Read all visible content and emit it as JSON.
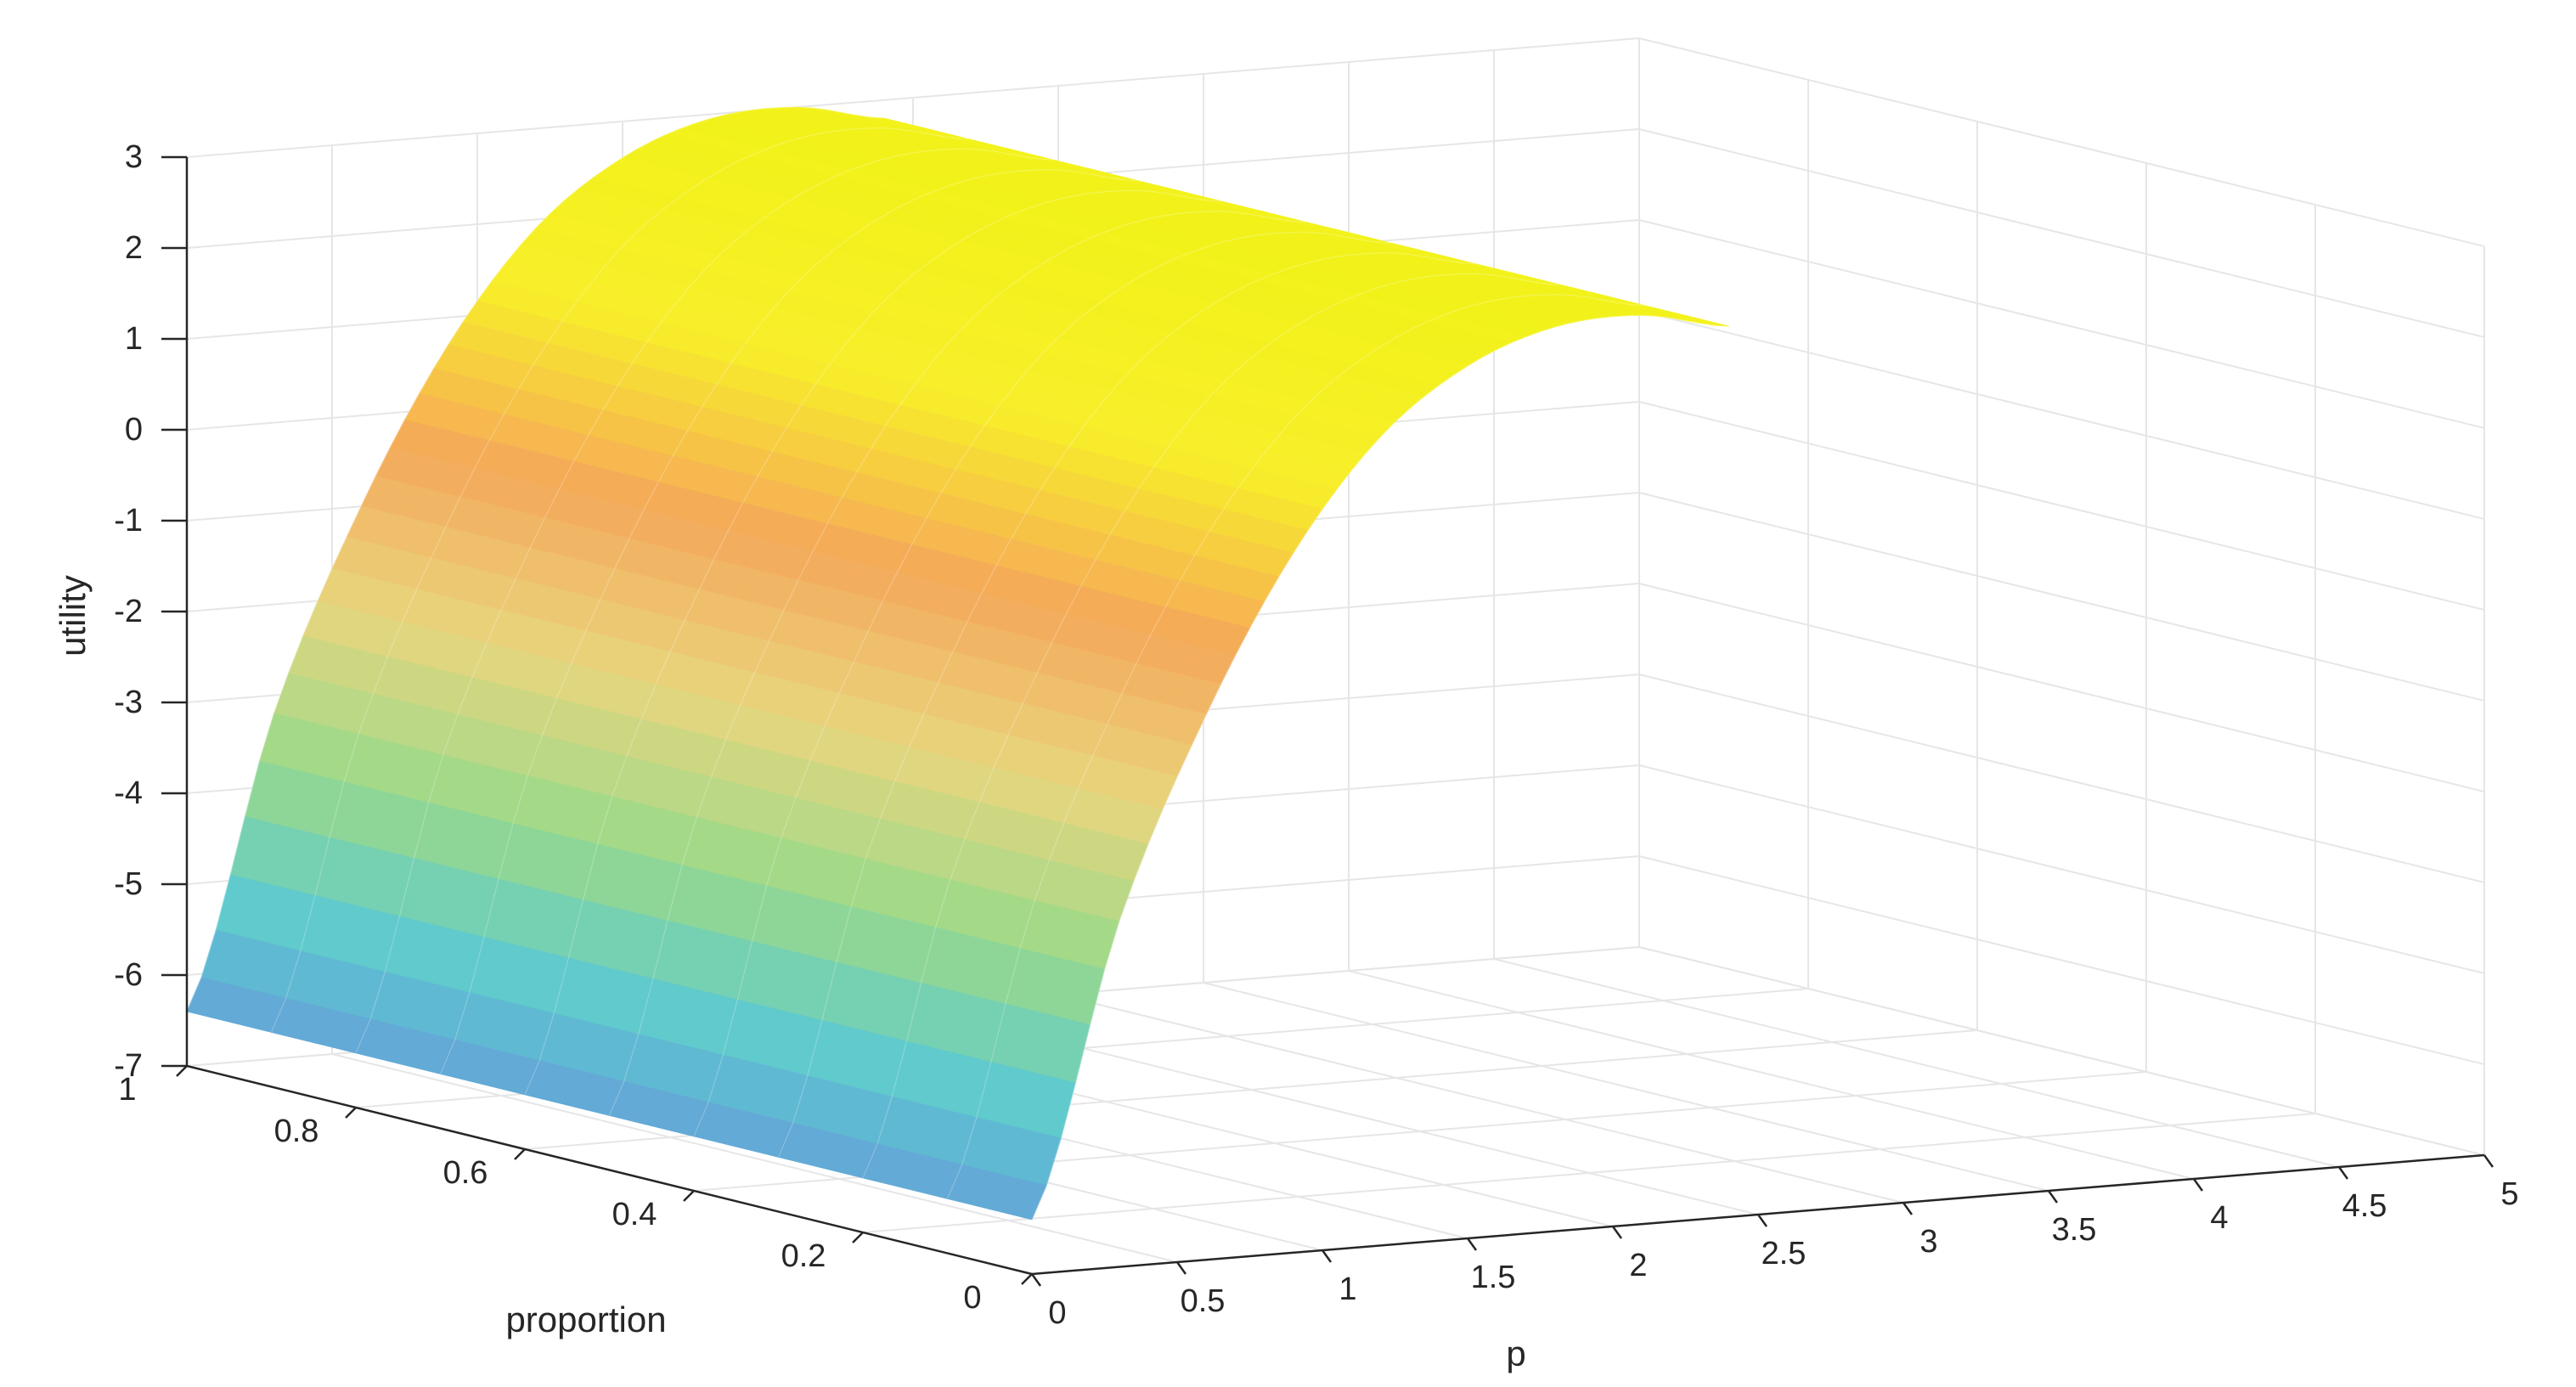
{
  "chart_data": {
    "type": "surface",
    "title": "",
    "xlabel": "p",
    "ylabel": "proportion",
    "zlabel": "utility",
    "xlim": [
      0,
      5
    ],
    "ylim": [
      0,
      1
    ],
    "zlim": [
      -7,
      3
    ],
    "x_ticks": [
      "0",
      "0.5",
      "1",
      "1.5",
      "2",
      "2.5",
      "3",
      "3.5",
      "4",
      "4.5",
      "5"
    ],
    "y_ticks": [
      "0",
      "0.2",
      "0.4",
      "0.6",
      "0.8",
      "1"
    ],
    "z_ticks": [
      "-7",
      "-6",
      "-5",
      "-4",
      "-3",
      "-2",
      "-1",
      "0",
      "1",
      "2",
      "3"
    ],
    "x_range": [
      0,
      2.4
    ],
    "y_range": [
      0,
      1
    ],
    "series": [
      {
        "x": [
          0.0,
          0.3,
          0.6,
          0.9,
          1.2,
          1.5,
          1.8,
          2.1,
          2.4
        ],
        "z": [
          -6.4,
          -3.2,
          -1.0,
          0.7,
          1.9,
          2.6,
          2.95,
          3.0,
          2.8
        ]
      }
    ],
    "colormap": [
      "#6a8fdc",
      "#5cc9d0",
      "#9ad98a",
      "#e8d67e",
      "#f5a85a",
      "#f8ee2a",
      "#f2f21a"
    ],
    "grid": true
  }
}
